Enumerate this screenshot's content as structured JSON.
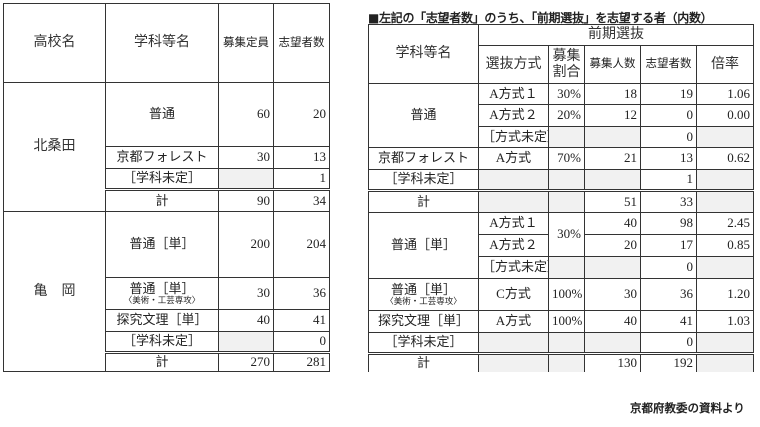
{
  "left_table": {
    "headers": [
      "高校名",
      "学科等名",
      "募集定員",
      "志望者数"
    ],
    "groups": [
      {
        "school": "北桑田",
        "rows": [
          {
            "dept": "普通",
            "quota": "60",
            "applicants": "20"
          },
          {
            "dept": "京都フォレスト",
            "quota": "30",
            "applicants": "13"
          },
          {
            "dept": "［学科未定］",
            "quota": "",
            "applicants": "1",
            "undecided": true
          },
          {
            "dept": "計",
            "quota": "90",
            "applicants": "34",
            "total": true
          }
        ]
      },
      {
        "school": "亀　岡",
        "rows": [
          {
            "dept": "普通［単］",
            "quota": "200",
            "applicants": "204"
          },
          {
            "dept": "普通［単］",
            "sub": "〈美術・工芸専攻〉",
            "quota": "30",
            "applicants": "36"
          },
          {
            "dept": "探究文理［単］",
            "quota": "40",
            "applicants": "41"
          },
          {
            "dept": "［学科未定］",
            "quota": "",
            "applicants": "0",
            "undecided": true
          },
          {
            "dept": "計",
            "quota": "270",
            "applicants": "281",
            "total": true
          }
        ]
      }
    ]
  },
  "right_table": {
    "title": "■左記の「志望者数」のうち、「前期選抜」を志望する者（内数）",
    "headers": {
      "dept": "学科等名",
      "group": "前期選抜",
      "method": "選抜方式",
      "ratio": "募集割合",
      "quota": "募集人数",
      "applicants": "志望者数",
      "rate": "倍率"
    },
    "departments": [
      {
        "dept": "普通",
        "methods": [
          {
            "method": "A方式１",
            "ratio": "30%",
            "quota": "18",
            "applicants": "19",
            "rate": "1.06"
          },
          {
            "method": "A方式２",
            "ratio": "20%",
            "quota": "12",
            "applicants": "0",
            "rate": "0.00"
          },
          {
            "method": "［方式未定］",
            "ratio": "",
            "quota": "",
            "applicants": "0",
            "rate": ""
          }
        ]
      },
      {
        "dept": "京都フォレスト",
        "methods": [
          {
            "method": "A方式",
            "ratio": "70%",
            "quota": "21",
            "applicants": "13",
            "rate": "0.62"
          }
        ]
      },
      {
        "dept": "［学科未定］",
        "methods": [
          {
            "method": "",
            "ratio": "",
            "quota": "",
            "applicants": "1",
            "rate": ""
          }
        ]
      },
      {
        "dept": "計",
        "total": true,
        "methods": [
          {
            "method": "",
            "ratio": "",
            "quota": "51",
            "applicants": "33",
            "rate": ""
          }
        ]
      },
      {
        "dept": "普通［単］",
        "ratio_merged": true,
        "methods": [
          {
            "method": "A方式１",
            "ratio": "30%",
            "quota": "40",
            "applicants": "98",
            "rate": "2.45"
          },
          {
            "method": "A方式２",
            "ratio": "30%",
            "quota": "20",
            "applicants": "17",
            "rate": "0.85"
          },
          {
            "method": "［方式未定］",
            "ratio": "",
            "quota": "",
            "applicants": "0",
            "rate": ""
          }
        ]
      },
      {
        "dept": "普通［単］",
        "sub": "〈美術・工芸専攻〉",
        "methods": [
          {
            "method": "C方式",
            "ratio": "100%",
            "quota": "30",
            "applicants": "36",
            "rate": "1.20"
          }
        ]
      },
      {
        "dept": "探究文理［単］",
        "methods": [
          {
            "method": "A方式",
            "ratio": "100%",
            "quota": "40",
            "applicants": "41",
            "rate": "1.03"
          }
        ]
      },
      {
        "dept": "［学科未定］",
        "methods": [
          {
            "method": "",
            "ratio": "",
            "quota": "",
            "applicants": "0",
            "rate": ""
          }
        ]
      },
      {
        "dept": "計",
        "total": true,
        "methods": [
          {
            "method": "",
            "ratio": "",
            "quota": "130",
            "applicants": "192",
            "rate": ""
          }
        ]
      }
    ]
  },
  "source": "京都府教委の資料より"
}
